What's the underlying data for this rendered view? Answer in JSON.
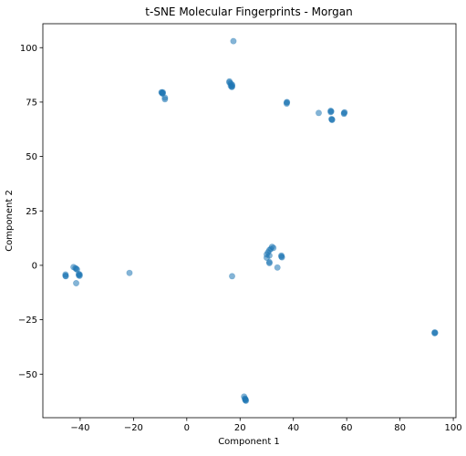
{
  "chart_data": {
    "type": "scatter",
    "title": "t-SNE Molecular Fingerprints - Morgan",
    "xlabel": "Component 1",
    "ylabel": "Component 2",
    "xlim": [
      -54,
      101
    ],
    "ylim": [
      -70,
      111
    ],
    "xticks": [
      -40,
      -20,
      0,
      20,
      40,
      60,
      80,
      100
    ],
    "yticks": [
      -50,
      -25,
      0,
      25,
      50,
      75,
      100
    ],
    "xtick_labels": [
      "−40",
      "−20",
      "0",
      "20",
      "40",
      "60",
      "80",
      "100"
    ],
    "ytick_labels": [
      "−50",
      "−25",
      "0",
      "25",
      "50",
      "75",
      "100"
    ],
    "grid": false,
    "marker_color": "#1f77b4",
    "marker_alpha": 0.55,
    "series": [
      {
        "x": [
          17.5,
          16,
          16,
          16.5,
          16.5,
          16.8,
          17,
          17,
          17,
          -9.5,
          -9.3,
          -9.2,
          -9,
          -9,
          -8.2,
          -8.2,
          37.5,
          37.5,
          37.6,
          49.5,
          54,
          54,
          54.2,
          54.3,
          54.5,
          54.5,
          59,
          59,
          59.2,
          -45.5,
          -45.5,
          -45.4,
          -42.5,
          -41.8,
          -41.5,
          -41.2,
          -41.5,
          -40.5,
          -40.5,
          -40.2,
          -40.2,
          -21.5,
          30,
          30,
          30.5,
          31,
          31,
          31.5,
          32,
          32.5,
          31,
          31,
          34,
          35.5,
          35.5,
          35.7,
          17,
          93,
          93,
          93.2,
          21.5,
          21.8,
          22,
          22,
          22,
          22.2
        ],
        "y": [
          103,
          84.5,
          84,
          83.5,
          82.5,
          82,
          82.5,
          82,
          83,
          79.5,
          79.3,
          79,
          79.5,
          79,
          77,
          76.3,
          74.8,
          74.3,
          75,
          70,
          71,
          70.4,
          70.7,
          67.2,
          66.8,
          67,
          70,
          69.6,
          70.3,
          -4.8,
          -4.2,
          -5,
          -0.8,
          -1.3,
          -1.6,
          -1.9,
          -8.2,
          -4,
          -4.6,
          -4.2,
          -4.8,
          -3.5,
          3.5,
          5,
          6,
          7,
          4.5,
          7.5,
          8.5,
          8,
          1.5,
          1,
          -1,
          4,
          4.5,
          3.7,
          -5,
          -30.8,
          -31.2,
          -31,
          -60.3,
          -61.2,
          -61.7,
          -62,
          -61.5,
          -62.2
        ]
      }
    ]
  }
}
